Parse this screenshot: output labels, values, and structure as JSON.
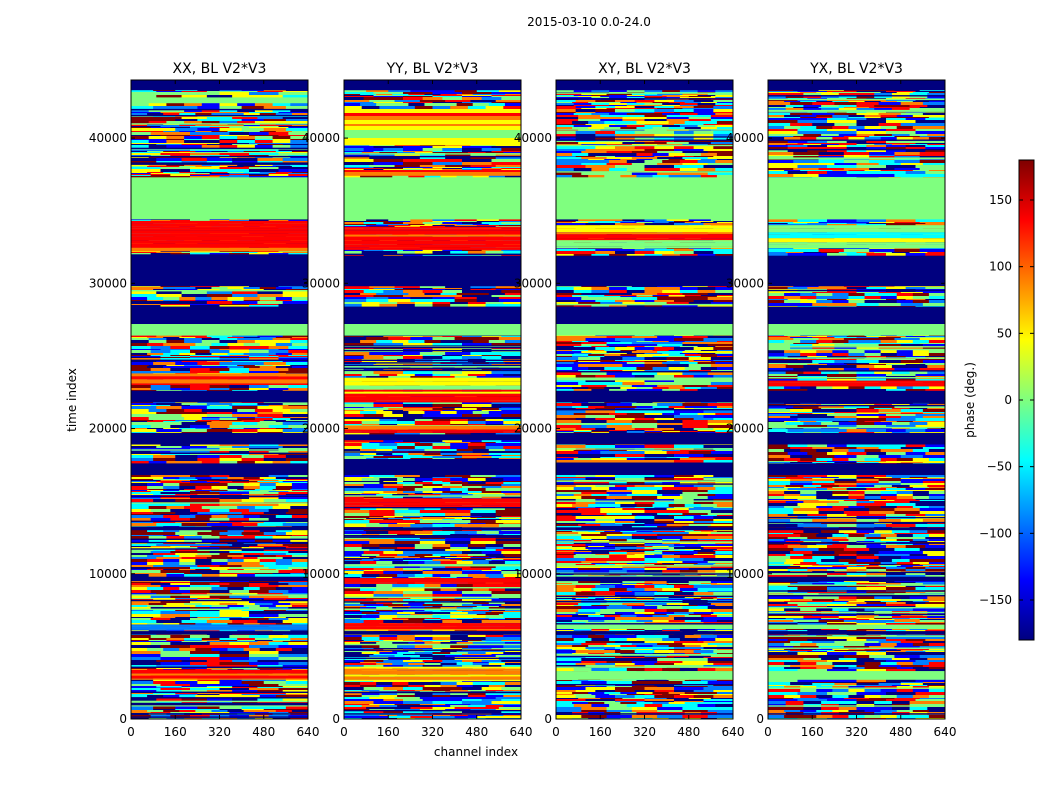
{
  "chart_data": {
    "type": "heatmap",
    "suptitle": "2015-03-10 0.0-24.0",
    "xlabel": "channel index",
    "ylabel": "time index",
    "xlim": [
      0,
      640
    ],
    "ylim": [
      0,
      44000
    ],
    "xticks": [
      0,
      160,
      320,
      480,
      640
    ],
    "yticks": [
      0,
      10000,
      20000,
      30000,
      40000
    ],
    "ytick_labels": [
      "0",
      "10000",
      "20000",
      "30000",
      "40000"
    ],
    "panels": [
      {
        "title": "XX, BL V2*V3",
        "bands": [
          {
            "y": [
              300,
              400
            ],
            "kind": "flag"
          },
          {
            "y": [
              2700,
              3400
            ],
            "kind": "red"
          },
          {
            "y": [
              5800,
              6050
            ],
            "kind": "flag"
          },
          {
            "y": [
              6100,
              6500
            ],
            "kind": "blue"
          },
          {
            "y": [
              9500,
              9800
            ],
            "kind": "flag"
          },
          {
            "y": [
              13000,
              13200
            ],
            "kind": "flag"
          },
          {
            "y": [
              16800,
              17600
            ],
            "kind": "flag"
          },
          {
            "y": [
              18900,
              19700
            ],
            "kind": "flag"
          },
          {
            "y": [
              21800,
              22600
            ],
            "kind": "flag"
          },
          {
            "y": [
              23000,
              23800
            ],
            "kind": "red"
          },
          {
            "y": [
              26400,
              27200
            ],
            "kind": "zero"
          },
          {
            "y": [
              27200,
              28400
            ],
            "kind": "flag"
          },
          {
            "y": [
              29800,
              31900
            ],
            "kind": "flag"
          },
          {
            "y": [
              32200,
              34300
            ],
            "kind": "red"
          },
          {
            "y": [
              34400,
              37300
            ],
            "kind": "zero"
          },
          {
            "y": [
              42400,
              42800
            ],
            "kind": "zero"
          },
          {
            "y": [
              43300,
              44000
            ],
            "kind": "flag"
          }
        ]
      },
      {
        "title": "YY, BL V2*V3",
        "bands": [
          {
            "y": [
              300,
              400
            ],
            "kind": "flag"
          },
          {
            "y": [
              2600,
              3600
            ],
            "kind": "orange"
          },
          {
            "y": [
              5800,
              6050
            ],
            "kind": "flag"
          },
          {
            "y": [
              6100,
              6600
            ],
            "kind": "red"
          },
          {
            "y": [
              9300,
              9700
            ],
            "kind": "red"
          },
          {
            "y": [
              13000,
              13200
            ],
            "kind": "flag"
          },
          {
            "y": [
              14600,
              15200
            ],
            "kind": "red"
          },
          {
            "y": [
              16800,
              17900
            ],
            "kind": "flag"
          },
          {
            "y": [
              19200,
              19600
            ],
            "kind": "flag"
          },
          {
            "y": [
              19700,
              20200
            ],
            "kind": "red"
          },
          {
            "y": [
              21800,
              23500
            ],
            "kind": "mix"
          },
          {
            "y": [
              26400,
              27200
            ],
            "kind": "zero"
          },
          {
            "y": [
              27200,
              28400
            ],
            "kind": "flag"
          },
          {
            "y": [
              29800,
              31900
            ],
            "kind": "flag"
          },
          {
            "y": [
              32300,
              33900
            ],
            "kind": "red"
          },
          {
            "y": [
              34400,
              37300
            ],
            "kind": "zero"
          },
          {
            "y": [
              37400,
              37800
            ],
            "kind": "red"
          },
          {
            "y": [
              39500,
              42000
            ],
            "kind": "mix"
          },
          {
            "y": [
              43300,
              44000
            ],
            "kind": "flag"
          }
        ]
      },
      {
        "title": "XY, BL V2*V3",
        "bands": [
          {
            "y": [
              300,
              400
            ],
            "kind": "flag"
          },
          {
            "y": [
              2700,
              3300
            ],
            "kind": "zero"
          },
          {
            "y": [
              5800,
              6050
            ],
            "kind": "flag"
          },
          {
            "y": [
              6200,
              6500
            ],
            "kind": "zero"
          },
          {
            "y": [
              9500,
              9800
            ],
            "kind": "flag"
          },
          {
            "y": [
              13000,
              13200
            ],
            "kind": "flag"
          },
          {
            "y": [
              16800,
              17600
            ],
            "kind": "flag"
          },
          {
            "y": [
              18900,
              19700
            ],
            "kind": "flag"
          },
          {
            "y": [
              21800,
              22600
            ],
            "kind": "flag"
          },
          {
            "y": [
              26400,
              27200
            ],
            "kind": "zero"
          },
          {
            "y": [
              27200,
              28400
            ],
            "kind": "flag"
          },
          {
            "y": [
              29800,
              31900
            ],
            "kind": "flag"
          },
          {
            "y": [
              32400,
              34000
            ],
            "kind": "mix"
          },
          {
            "y": [
              34400,
              37300
            ],
            "kind": "zero"
          },
          {
            "y": [
              43300,
              44000
            ],
            "kind": "flag"
          }
        ]
      },
      {
        "title": "YX, BL V2*V3",
        "bands": [
          {
            "y": [
              300,
              400
            ],
            "kind": "flag"
          },
          {
            "y": [
              2700,
              3300
            ],
            "kind": "zero"
          },
          {
            "y": [
              5800,
              6050
            ],
            "kind": "flag"
          },
          {
            "y": [
              6200,
              6500
            ],
            "kind": "zero"
          },
          {
            "y": [
              9500,
              9800
            ],
            "kind": "flag"
          },
          {
            "y": [
              13000,
              13200
            ],
            "kind": "flag"
          },
          {
            "y": [
              16800,
              17600
            ],
            "kind": "flag"
          },
          {
            "y": [
              18900,
              19700
            ],
            "kind": "flag"
          },
          {
            "y": [
              21800,
              22600
            ],
            "kind": "flag"
          },
          {
            "y": [
              22900,
              23300
            ],
            "kind": "red"
          },
          {
            "y": [
              26400,
              27200
            ],
            "kind": "zero"
          },
          {
            "y": [
              27200,
              28400
            ],
            "kind": "flag"
          },
          {
            "y": [
              29800,
              31900
            ],
            "kind": "flag"
          },
          {
            "y": [
              32400,
              34000
            ],
            "kind": "cyanmix"
          },
          {
            "y": [
              34400,
              37300
            ],
            "kind": "zero"
          },
          {
            "y": [
              43300,
              44000
            ],
            "kind": "flag"
          }
        ]
      }
    ],
    "colorbar": {
      "label": "phase (deg.)",
      "range": [
        -180,
        180
      ],
      "ticks": [
        -150,
        -100,
        -50,
        0,
        50,
        100,
        150
      ],
      "tick_labels": [
        "−150",
        "−100",
        "−50",
        "0",
        "50",
        "100",
        "150"
      ],
      "colormap": [
        "#00007f",
        "#0000ff",
        "#007fff",
        "#00ffff",
        "#7fff7f",
        "#ffff00",
        "#ff7f00",
        "#ff0000",
        "#7f0000"
      ]
    }
  }
}
